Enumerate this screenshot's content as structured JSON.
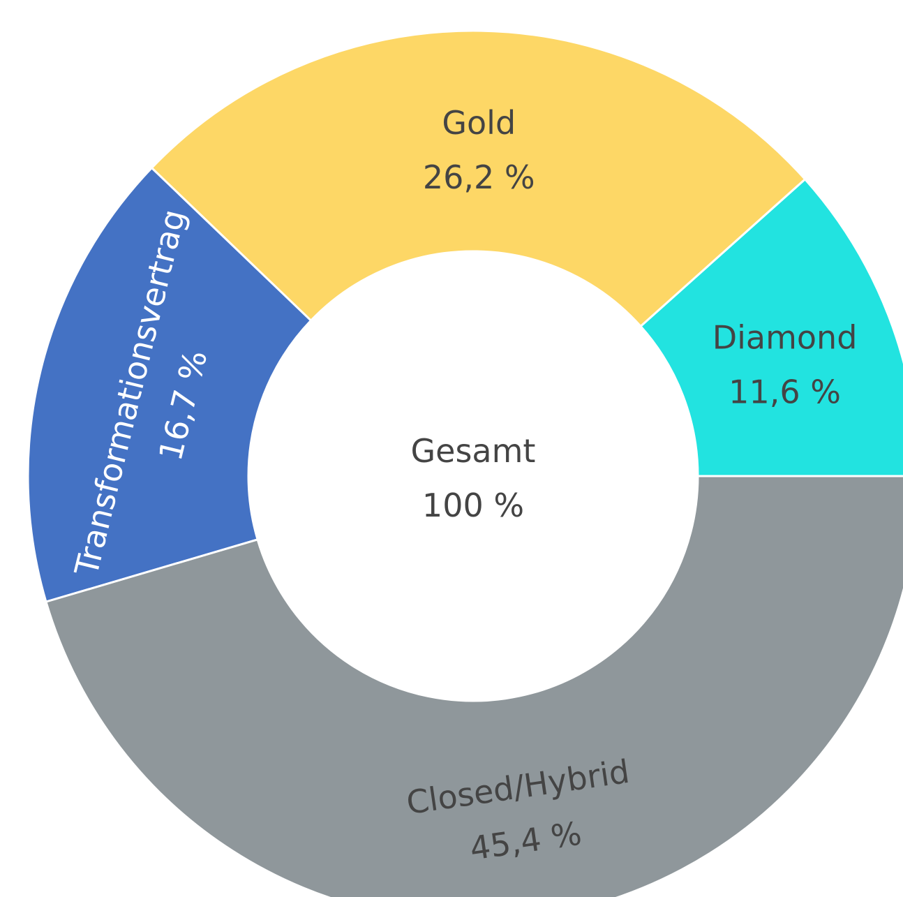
{
  "chart_data": {
    "type": "sunburst",
    "center": {
      "label": "Gesamt",
      "value": 100,
      "value_label": "100 %"
    },
    "categories": [
      "Diamond",
      "Gold",
      "Transformationsvertrag",
      "Closed/Hybrid"
    ],
    "values": [
      11.6,
      26.2,
      16.7,
      45.4
    ],
    "value_labels": [
      "11,6 %",
      "26,2 %",
      "16,7 %",
      "45,4 %"
    ],
    "colors": [
      "#22e3e0",
      "#fdd766",
      "#4472c4",
      "#8f979b"
    ]
  }
}
